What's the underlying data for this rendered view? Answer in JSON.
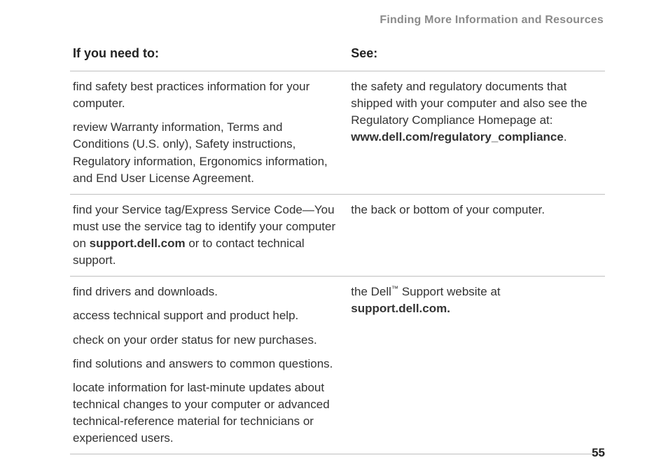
{
  "running_head": "Finding More Information and Resources",
  "page_number": "55",
  "table": {
    "header_left": "If you need to:",
    "header_right": "See:",
    "rows": [
      {
        "left": [
          {
            "text": "find safety best practices information for your computer."
          },
          {
            "text": "review Warranty information, Terms and Conditions (U.S. only), Safety instructions, Regulatory information, Ergonomics information, and End User License Agreement."
          }
        ],
        "right": [
          {
            "segments": [
              {
                "text": "the safety and regulatory documents that shipped with your computer and also see the Regulatory Compliance Homepage at: "
              },
              {
                "text": "www.dell.com/regulatory_compliance",
                "bold": true
              },
              {
                "text": "."
              }
            ]
          }
        ]
      },
      {
        "left": [
          {
            "segments": [
              {
                "text": "find your Service tag/Express Service Code—You must use the service tag to identify your computer on "
              },
              {
                "text": "support.dell.com",
                "bold": true
              },
              {
                "text": " or to contact technical support."
              }
            ]
          }
        ],
        "right": [
          {
            "text": "the back or bottom of your computer."
          }
        ]
      },
      {
        "left": [
          {
            "text": "find drivers and downloads."
          },
          {
            "text": "access technical support and product help."
          },
          {
            "text": "check on your order status for new purchases."
          },
          {
            "text": "find solutions and answers to common questions."
          },
          {
            "text": "locate information for last-minute updates about technical changes to your computer or advanced technical-reference material for technicians or experienced users."
          }
        ],
        "right": [
          {
            "segments": [
              {
                "text": "the Dell"
              },
              {
                "text": "™",
                "tm": true
              },
              {
                "text": " Support website at "
              },
              {
                "text": "support.dell.com.",
                "bold": true
              }
            ]
          }
        ]
      }
    ]
  }
}
